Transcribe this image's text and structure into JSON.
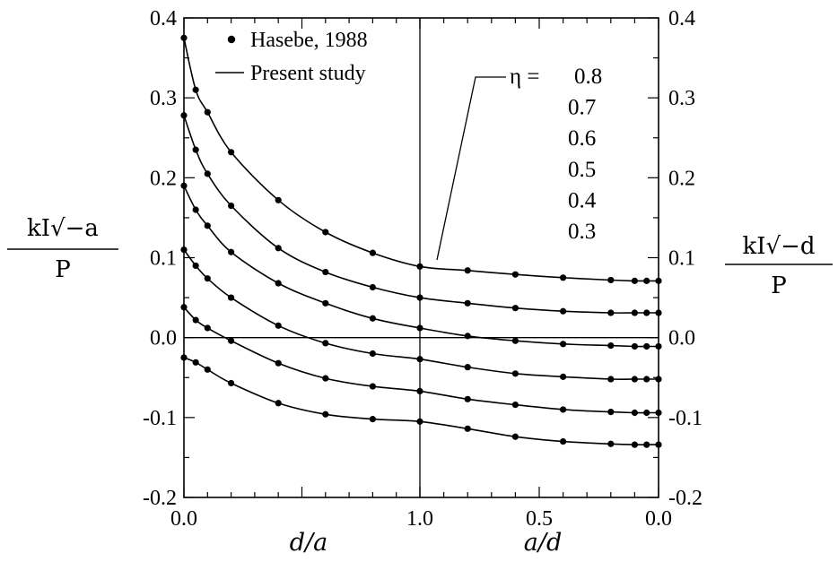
{
  "chart_data": {
    "type": "line",
    "ylim": [
      -0.2,
      0.4
    ],
    "y_ticks": [
      "-0.2",
      "-0.1",
      "0.0",
      "0.1",
      "0.2",
      "0.3",
      "0.4"
    ],
    "y_ticks_right": [
      "-0.2",
      "-0.1",
      "0.0",
      "0.1",
      "0.2",
      "0.3",
      "0.4"
    ],
    "y_tick_values": [
      -0.2,
      -0.1,
      0.0,
      0.1,
      0.2,
      0.3,
      0.4
    ],
    "left_panel": {
      "xlabel": "d/a",
      "xlim": [
        0,
        1
      ],
      "x_ticks": [
        "0.0",
        "1.0"
      ]
    },
    "right_panel": {
      "xlabel": "a/d",
      "xlim": [
        1,
        0
      ],
      "x_ticks": [
        "0.5",
        "0.0"
      ]
    },
    "ylabel_left": {
      "num": "kI√−a",
      "den": "P"
    },
    "ylabel_right": {
      "num": "kI√−d",
      "den": "P"
    },
    "legend": {
      "markers": "Hasebe, 1988",
      "line": "Present study"
    },
    "eta_label": "η =",
    "series_labels": [
      "0.8",
      "0.7",
      "0.6",
      "0.5",
      "0.4",
      "0.3"
    ],
    "series": [
      {
        "name": "0.8",
        "left": {
          "x": [
            0.0,
            0.05,
            0.1,
            0.2,
            0.4,
            0.6,
            0.8,
            1.0
          ],
          "y": [
            0.375,
            0.31,
            0.282,
            0.232,
            0.172,
            0.132,
            0.106,
            0.089
          ]
        },
        "right": {
          "x": [
            1.0,
            0.8,
            0.6,
            0.4,
            0.2,
            0.1,
            0.05,
            0.0
          ],
          "y": [
            0.089,
            0.084,
            0.079,
            0.075,
            0.072,
            0.071,
            0.071,
            0.071
          ]
        }
      },
      {
        "name": "0.7",
        "left": {
          "x": [
            0.0,
            0.05,
            0.1,
            0.2,
            0.4,
            0.6,
            0.8,
            1.0
          ],
          "y": [
            0.278,
            0.235,
            0.205,
            0.165,
            0.112,
            0.082,
            0.063,
            0.05
          ]
        },
        "right": {
          "x": [
            1.0,
            0.8,
            0.6,
            0.4,
            0.2,
            0.1,
            0.05,
            0.0
          ],
          "y": [
            0.05,
            0.043,
            0.037,
            0.033,
            0.031,
            0.031,
            0.031,
            0.031
          ]
        }
      },
      {
        "name": "0.6",
        "left": {
          "x": [
            0.0,
            0.05,
            0.1,
            0.2,
            0.4,
            0.6,
            0.8,
            1.0
          ],
          "y": [
            0.19,
            0.16,
            0.14,
            0.107,
            0.068,
            0.043,
            0.024,
            0.012
          ]
        },
        "right": {
          "x": [
            1.0,
            0.8,
            0.6,
            0.4,
            0.2,
            0.1,
            0.05,
            0.0
          ],
          "y": [
            0.012,
            0.002,
            -0.004,
            -0.008,
            -0.01,
            -0.011,
            -0.011,
            -0.011
          ]
        }
      },
      {
        "name": "0.5",
        "left": {
          "x": [
            0.0,
            0.05,
            0.1,
            0.2,
            0.4,
            0.6,
            0.8,
            1.0
          ],
          "y": [
            0.11,
            0.09,
            0.074,
            0.05,
            0.015,
            -0.007,
            -0.02,
            -0.027
          ]
        },
        "right": {
          "x": [
            1.0,
            0.8,
            0.6,
            0.4,
            0.2,
            0.1,
            0.05,
            0.0
          ],
          "y": [
            -0.027,
            -0.037,
            -0.045,
            -0.049,
            -0.052,
            -0.052,
            -0.052,
            -0.052
          ]
        }
      },
      {
        "name": "0.4",
        "left": {
          "x": [
            0.0,
            0.05,
            0.1,
            0.2,
            0.4,
            0.6,
            0.8,
            1.0
          ],
          "y": [
            0.038,
            0.022,
            0.012,
            -0.004,
            -0.032,
            -0.051,
            -0.061,
            -0.067
          ]
        },
        "right": {
          "x": [
            1.0,
            0.8,
            0.6,
            0.4,
            0.2,
            0.1,
            0.05,
            0.0
          ],
          "y": [
            -0.067,
            -0.077,
            -0.084,
            -0.09,
            -0.093,
            -0.094,
            -0.094,
            -0.094
          ]
        }
      },
      {
        "name": "0.3",
        "left": {
          "x": [
            0.0,
            0.05,
            0.1,
            0.2,
            0.4,
            0.6,
            0.8,
            1.0
          ],
          "y": [
            -0.025,
            -0.031,
            -0.04,
            -0.057,
            -0.082,
            -0.096,
            -0.102,
            -0.105
          ]
        },
        "right": {
          "x": [
            1.0,
            0.8,
            0.6,
            0.4,
            0.2,
            0.1,
            0.05,
            0.0
          ],
          "y": [
            -0.105,
            -0.114,
            -0.124,
            -0.13,
            -0.133,
            -0.134,
            -0.134,
            -0.134
          ]
        }
      }
    ]
  }
}
